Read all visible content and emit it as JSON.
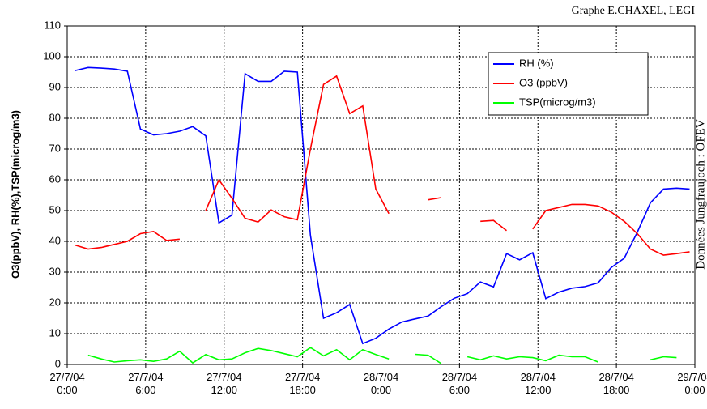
{
  "chart_data": {
    "type": "line",
    "credit": "Graphe E.CHAXEL, LEGI",
    "source": "Données Jungfraujoch : OFEV",
    "y_label": "O3(ppbV), RH(%),TSP(microg/m3)",
    "x": [
      0.6,
      1.6,
      2.6,
      3.6,
      4.6,
      5.6,
      6.6,
      7.6,
      8.6,
      9.6,
      10.6,
      11.6,
      12.6,
      13.6,
      14.6,
      15.6,
      16.6,
      17.6,
      18.6,
      19.6,
      20.6,
      21.6,
      22.6,
      23.6,
      24.6,
      25.6,
      26.6,
      27.6,
      28.6,
      29.6,
      30.6,
      31.6,
      32.6,
      33.6,
      34.6,
      35.6,
      36.6,
      37.6,
      38.6,
      39.6,
      40.6,
      41.6,
      42.6,
      43.6,
      44.6,
      45.6,
      46.6,
      47.6
    ],
    "series": [
      {
        "name": "RH (%)",
        "color": "#0000ff",
        "values": [
          95.5,
          96.5,
          96.3,
          96,
          95.3,
          76.5,
          74.6,
          75,
          75.8,
          77.3,
          74.3,
          46,
          48.5,
          94.5,
          92,
          92,
          95.3,
          95,
          42,
          15,
          16.8,
          19.5,
          6.8,
          8.5,
          11.5,
          13.8,
          14.8,
          15.7,
          18.8,
          21.5,
          23,
          26.8,
          25.2,
          36,
          34,
          36.3,
          21.4,
          23.5,
          24.8,
          25.3,
          26.5,
          31.5,
          34.5,
          43,
          52.5,
          57,
          57.3,
          57
        ]
      },
      {
        "name": "O3 (ppbV)",
        "color": "#ff0000",
        "values": [
          38.8,
          37.5,
          38,
          39,
          40,
          42.5,
          43.2,
          40.3,
          40.7,
          null,
          50,
          60,
          54,
          47.5,
          46.3,
          50.2,
          48,
          47,
          70,
          91,
          93.7,
          81.5,
          84,
          57,
          49,
          null,
          null,
          53.5,
          54.2,
          null,
          null,
          46.5,
          46.8,
          43.5,
          null,
          44,
          50,
          51,
          52,
          52,
          51.5,
          49.5,
          46.5,
          42.5,
          37.5,
          35.5,
          36,
          36.6
        ]
      },
      {
        "name": "TSP(microg/m3)",
        "color": "#00ff00",
        "values": [
          null,
          3,
          1.8,
          0.8,
          1.2,
          1.5,
          1,
          1.8,
          4.3,
          0.5,
          3.2,
          1.5,
          1.8,
          3.8,
          5.2,
          4.5,
          3.5,
          2.5,
          5.5,
          2.8,
          4.8,
          1.5,
          4.8,
          3.2,
          1.8,
          null,
          3.3,
          3,
          0.3,
          null,
          2.5,
          1.5,
          2.8,
          1.8,
          2.5,
          2.2,
          1.2,
          3,
          2.5,
          2.5,
          0.8,
          null,
          null,
          null,
          1.5,
          2.5,
          2.2,
          null
        ]
      }
    ],
    "xlim": [
      0,
      48
    ],
    "xticks": [
      {
        "value": 0,
        "label": "27/7/04 0:00"
      },
      {
        "value": 6,
        "label": "27/7/04 6:00"
      },
      {
        "value": 12,
        "label": "27/7/04 12:00"
      },
      {
        "value": 18,
        "label": "27/7/04 18:00"
      },
      {
        "value": 24,
        "label": "28/7/04 0:00"
      },
      {
        "value": 30,
        "label": "28/7/04 6:00"
      },
      {
        "value": 36,
        "label": "28/7/04 12:00"
      },
      {
        "value": 42,
        "label": "28/7/04 18:00"
      },
      {
        "value": 48,
        "label": "29/7/04 0:00"
      }
    ],
    "ylim": [
      0,
      110
    ],
    "yticks": [
      0,
      10,
      20,
      30,
      40,
      50,
      60,
      70,
      80,
      90,
      100,
      110
    ],
    "grid": true,
    "legend": "upper right"
  }
}
